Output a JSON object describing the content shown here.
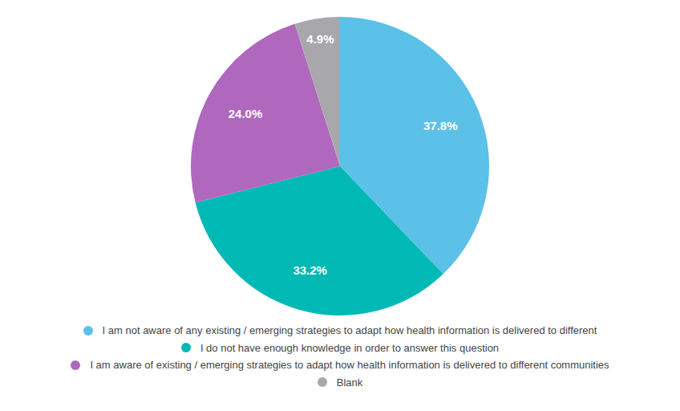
{
  "chart_data": {
    "type": "pie",
    "categories": [
      "I am not aware of any existing / emerging strategies to adapt how health information is delivered to different",
      "I do not have enough knowledge in order to answer this question",
      "I am aware of existing / emerging strategies to adapt how health information is delivered to different communities",
      "Blank"
    ],
    "values": [
      37.8,
      33.2,
      24.0,
      4.9
    ],
    "value_labels": [
      "37.8%",
      "33.2%",
      "24.0%",
      "4.9%"
    ],
    "colors": [
      "#5bc1e8",
      "#00b9b5",
      "#b068be",
      "#a8a8ac"
    ],
    "data_labels": true,
    "legend": "bottom"
  }
}
